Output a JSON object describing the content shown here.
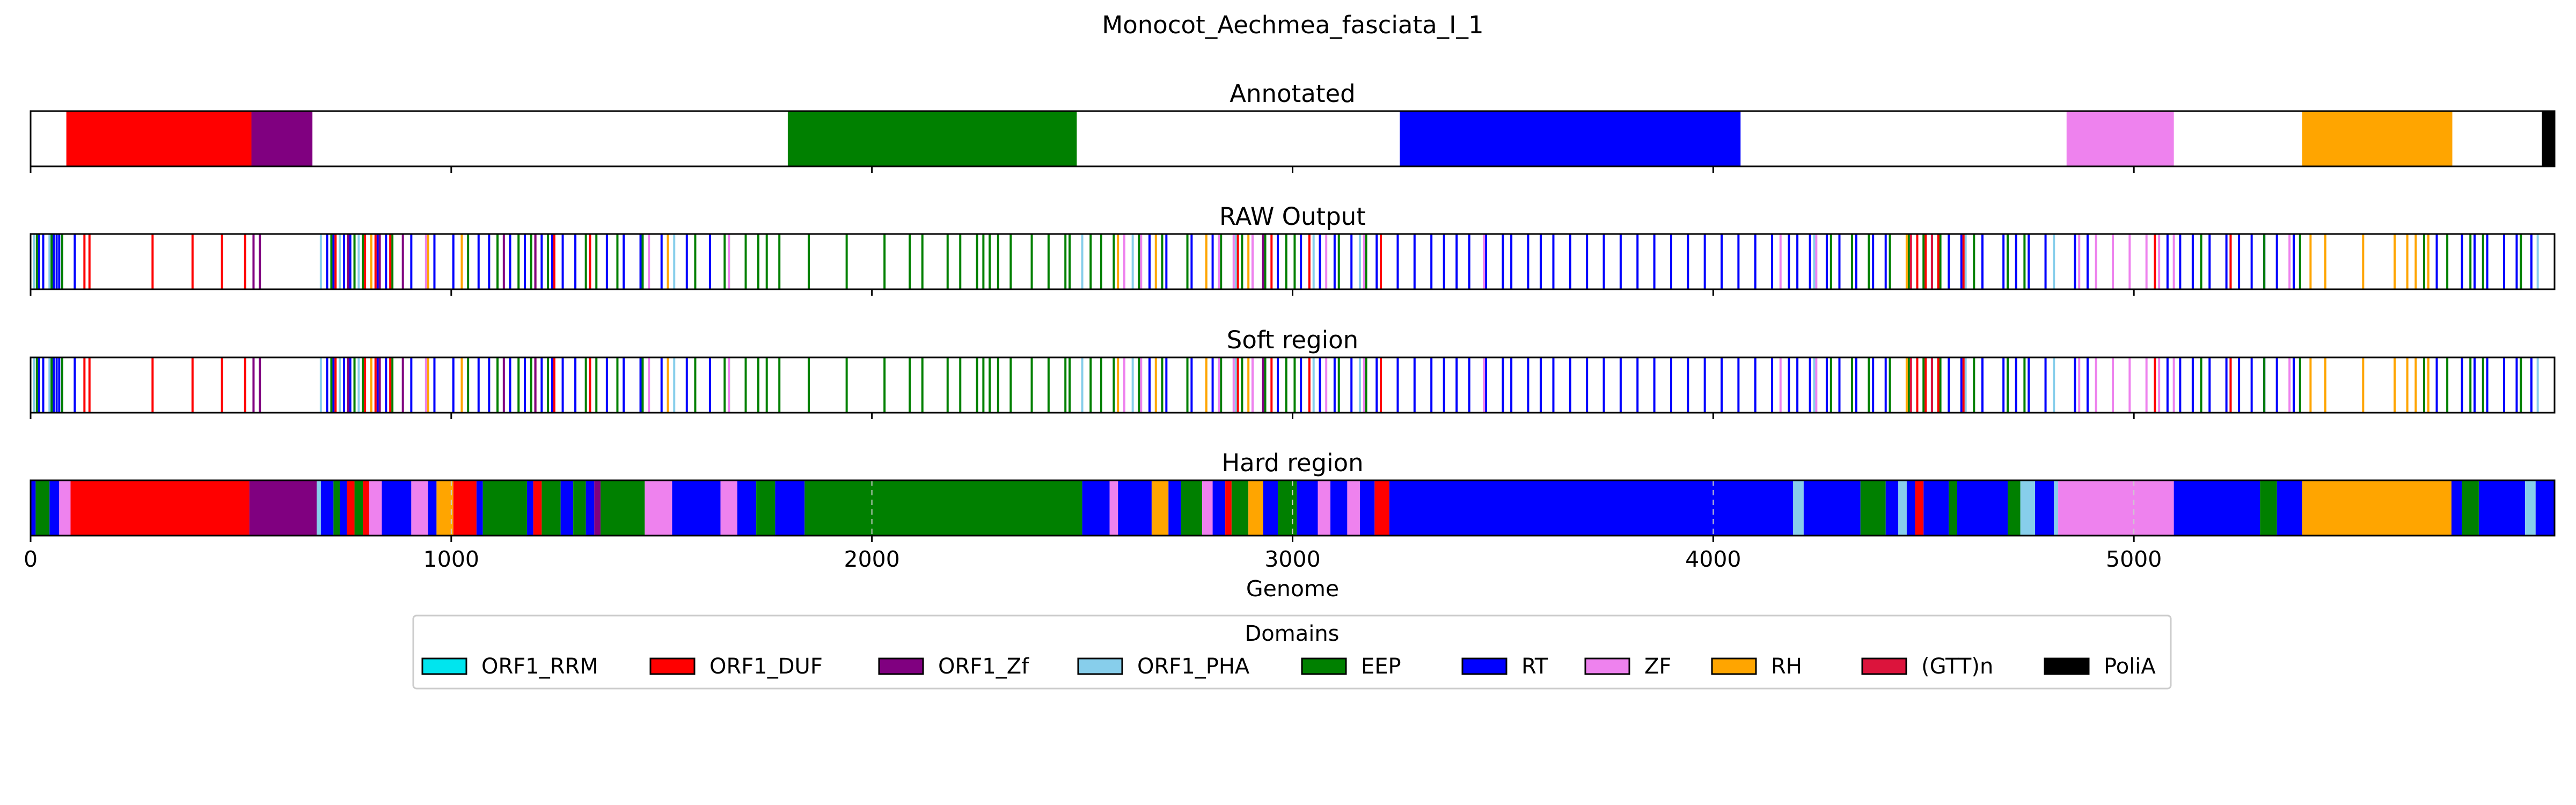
{
  "chart_data": {
    "type": "genome-track",
    "title": "Monocot_Aechmea_fasciata_I_1",
    "xlabel": "Genome",
    "xlim": [
      0,
      6000
    ],
    "xticks": [
      0,
      1000,
      2000,
      3000,
      4000,
      5000
    ],
    "tick_labels": [
      "0",
      "1000",
      "2000",
      "3000",
      "4000",
      "5000"
    ],
    "legend": {
      "title": "Domains",
      "placement": "bottom-center",
      "items": [
        {
          "label": "ORF1_RRM",
          "color": "#00e5ee"
        },
        {
          "label": "ORF1_DUF",
          "color": "#ff0000"
        },
        {
          "label": "ORF1_Zf",
          "color": "#800080"
        },
        {
          "label": "ORF1_PHA",
          "color": "#87ceeb"
        },
        {
          "label": "EEP",
          "color": "#008000"
        },
        {
          "label": "RT",
          "color": "#0000ff"
        },
        {
          "label": "ZF",
          "color": "#ee82ee"
        },
        {
          "label": "RH",
          "color": "#ffa500"
        },
        {
          "label": "(GTT)n",
          "color": "#dc143c"
        },
        {
          "label": "PoliA",
          "color": "#000000"
        }
      ]
    },
    "panels": [
      {
        "title": "Annotated",
        "kind": "blocks",
        "segments": [
          {
            "domain": "ORF1_DUF",
            "start": 85,
            "end": 525
          },
          {
            "domain": "ORF1_Zf",
            "start": 525,
            "end": 670
          },
          {
            "domain": "EEP",
            "start": 1800,
            "end": 2487
          },
          {
            "domain": "RT",
            "start": 3255,
            "end": 4065
          },
          {
            "domain": "ZF",
            "start": 4840,
            "end": 5095
          },
          {
            "domain": "RH",
            "start": 5400,
            "end": 5757
          },
          {
            "domain": "PoliA",
            "start": 5970,
            "end": 6000
          }
        ]
      },
      {
        "title": "RAW Output",
        "kind": "lines",
        "hits": [
          {
            "domain": "ORF1_PHA",
            "x": [
              8,
              45,
              690,
              735,
              780,
              1530,
              2500,
              2620,
              2865,
              3050,
              3160,
              4240,
              4600,
              4810,
              5960
            ]
          },
          {
            "domain": "RT",
            "x": [
              20,
              30,
              55,
              62,
              68,
              105,
              705,
              720,
              745,
              760,
              825,
              845,
              905,
              960,
              1005,
              1065,
              1090,
              1140,
              1175,
              1215,
              1240,
              1265,
              1295,
              1330,
              1370,
              1410,
              1450,
              1500,
              1560,
              1615,
              2660,
              2700,
              2760,
              2810,
              2905,
              2965,
              3020,
              3065,
              3100,
              3140,
              3200,
              3250,
              3290,
              3330,
              3360,
              3390,
              3420,
              3460,
              3500,
              3520,
              3560,
              3590,
              3620,
              3660,
              3700,
              3740,
              3780,
              3820,
              3860,
              3900,
              3940,
              3980,
              4020,
              4060,
              4100,
              4140,
              4180,
              4200,
              4230,
              4270,
              4300,
              4340,
              4380,
              4410,
              4520,
              4560,
              4590,
              4640,
              4690,
              4720,
              4750,
              4790,
              4860,
              4890,
              5080,
              5110,
              5140,
              5180,
              5220,
              5250,
              5280,
              5310,
              5340,
              5380,
              5720,
              5780,
              5810,
              5840,
              5880,
              5910,
              5945
            ]
          },
          {
            "domain": "EEP",
            "x": [
              15,
              50,
              75,
              715,
              770,
              790,
              860,
              1040,
              1110,
              1160,
              1190,
              1230,
              1320,
              1345,
              1395,
              1455,
              1580,
              1650,
              1660,
              1700,
              1730,
              1750,
              1780,
              1850,
              1940,
              2030,
              2090,
              2120,
              2180,
              2210,
              2250,
              2265,
              2280,
              2300,
              2330,
              2380,
              2420,
              2460,
              2470,
              2520,
              2545,
              2575,
              2635,
              2690,
              2750,
              2830,
              2880,
              2935,
              2985,
              3005,
              3110,
              3175,
              4280,
              4330,
              4370,
              4420,
              4465,
              4500,
              4540,
              4620,
              4700,
              4740,
              5160,
              5230,
              5310,
              5395,
              5690,
              5745,
              5800,
              5830,
              5920
            ]
          },
          {
            "domain": "ORF1_DUF",
            "x": [
              128,
              140,
              290,
              385,
              455,
              510,
              725,
              795,
              820,
              855,
              1200,
              1245,
              1330,
              2870,
              2950,
              3040,
              3210,
              4485,
              4505,
              4535,
              4595,
              5050,
              5230
            ]
          },
          {
            "domain": "ORF1_Zf",
            "x": [
              530,
              545,
              755,
              830,
              885,
              1125,
              1200,
              2930
            ]
          },
          {
            "domain": "ZF",
            "x": [
              940,
              1470,
              1660,
              2600,
              2640,
              2825,
              2860,
              2905,
              3080,
              3170,
              3455,
              4160,
              4245,
              4870,
              4910,
              4950,
              4990,
              5030,
              5060,
              5095,
              5370
            ]
          },
          {
            "domain": "RH",
            "x": [
              810,
              945,
              1025,
              1515,
              2585,
              2675,
              2795,
              2895,
              4460,
              5420,
              5455,
              5545,
              5620,
              5650,
              5670,
              5700
            ]
          },
          {
            "domain": "(GTT)n",
            "x": [
              4470,
              4520
            ]
          }
        ]
      },
      {
        "title": "Soft region",
        "kind": "lines",
        "same_as": "RAW Output"
      },
      {
        "title": "Hard region",
        "kind": "blocks",
        "segments": [
          {
            "domain": "RT",
            "start": 0,
            "end": 12
          },
          {
            "domain": "EEP",
            "start": 12,
            "end": 45
          },
          {
            "domain": "RT",
            "start": 45,
            "end": 68
          },
          {
            "domain": "ZF",
            "start": 68,
            "end": 95
          },
          {
            "domain": "ORF1_DUF",
            "start": 95,
            "end": 520
          },
          {
            "domain": "ORF1_Zf",
            "start": 520,
            "end": 680
          },
          {
            "domain": "ORF1_PHA",
            "start": 680,
            "end": 690
          },
          {
            "domain": "RT",
            "start": 690,
            "end": 720
          },
          {
            "domain": "EEP",
            "start": 720,
            "end": 735
          },
          {
            "domain": "RT",
            "start": 735,
            "end": 752
          },
          {
            "domain": "ORF1_DUF",
            "start": 752,
            "end": 770
          },
          {
            "domain": "EEP",
            "start": 770,
            "end": 790
          },
          {
            "domain": "ORF1_DUF",
            "start": 790,
            "end": 805
          },
          {
            "domain": "ZF",
            "start": 805,
            "end": 835
          },
          {
            "domain": "RT",
            "start": 835,
            "end": 905
          },
          {
            "domain": "ZF",
            "start": 905,
            "end": 945
          },
          {
            "domain": "RT",
            "start": 945,
            "end": 965
          },
          {
            "domain": "RH",
            "start": 965,
            "end": 1005
          },
          {
            "domain": "ORF1_DUF",
            "start": 1005,
            "end": 1060
          },
          {
            "domain": "RT",
            "start": 1060,
            "end": 1075
          },
          {
            "domain": "EEP",
            "start": 1075,
            "end": 1180
          },
          {
            "domain": "RT",
            "start": 1180,
            "end": 1195
          },
          {
            "domain": "ORF1_DUF",
            "start": 1195,
            "end": 1215
          },
          {
            "domain": "EEP",
            "start": 1215,
            "end": 1260
          },
          {
            "domain": "RT",
            "start": 1260,
            "end": 1290
          },
          {
            "domain": "EEP",
            "start": 1290,
            "end": 1320
          },
          {
            "domain": "RT",
            "start": 1320,
            "end": 1340
          },
          {
            "domain": "ORF1_Zf",
            "start": 1340,
            "end": 1355
          },
          {
            "domain": "EEP",
            "start": 1355,
            "end": 1460
          },
          {
            "domain": "ZF",
            "start": 1460,
            "end": 1525
          },
          {
            "domain": "RT",
            "start": 1525,
            "end": 1640
          },
          {
            "domain": "ZF",
            "start": 1640,
            "end": 1680
          },
          {
            "domain": "RT",
            "start": 1680,
            "end": 1725
          },
          {
            "domain": "EEP",
            "start": 1725,
            "end": 1770
          },
          {
            "domain": "RT",
            "start": 1770,
            "end": 1840
          },
          {
            "domain": "EEP",
            "start": 1840,
            "end": 2500
          },
          {
            "domain": "RT",
            "start": 2500,
            "end": 2565
          },
          {
            "domain": "ZF",
            "start": 2565,
            "end": 2585
          },
          {
            "domain": "RT",
            "start": 2585,
            "end": 2665
          },
          {
            "domain": "RH",
            "start": 2665,
            "end": 2705
          },
          {
            "domain": "RT",
            "start": 2705,
            "end": 2735
          },
          {
            "domain": "EEP",
            "start": 2735,
            "end": 2785
          },
          {
            "domain": "ZF",
            "start": 2785,
            "end": 2810
          },
          {
            "domain": "RT",
            "start": 2810,
            "end": 2840
          },
          {
            "domain": "ORF1_DUF",
            "start": 2840,
            "end": 2855
          },
          {
            "domain": "EEP",
            "start": 2855,
            "end": 2895
          },
          {
            "domain": "RH",
            "start": 2895,
            "end": 2930
          },
          {
            "domain": "RT",
            "start": 2930,
            "end": 2965
          },
          {
            "domain": "EEP",
            "start": 2965,
            "end": 3010
          },
          {
            "domain": "RT",
            "start": 3010,
            "end": 3060
          },
          {
            "domain": "ZF",
            "start": 3060,
            "end": 3090
          },
          {
            "domain": "RT",
            "start": 3090,
            "end": 3130
          },
          {
            "domain": "ZF",
            "start": 3130,
            "end": 3160
          },
          {
            "domain": "RT",
            "start": 3160,
            "end": 3195
          },
          {
            "domain": "ORF1_DUF",
            "start": 3195,
            "end": 3230
          },
          {
            "domain": "RT",
            "start": 3230,
            "end": 4190
          },
          {
            "domain": "ORF1_PHA",
            "start": 4190,
            "end": 4215
          },
          {
            "domain": "RT",
            "start": 4215,
            "end": 4350
          },
          {
            "domain": "EEP",
            "start": 4350,
            "end": 4410
          },
          {
            "domain": "RT",
            "start": 4410,
            "end": 4440
          },
          {
            "domain": "ORF1_PHA",
            "start": 4440,
            "end": 4460
          },
          {
            "domain": "RT",
            "start": 4460,
            "end": 4480
          },
          {
            "domain": "ORF1_DUF",
            "start": 4480,
            "end": 4500
          },
          {
            "domain": "RT",
            "start": 4500,
            "end": 4560
          },
          {
            "domain": "EEP",
            "start": 4560,
            "end": 4580
          },
          {
            "domain": "RT",
            "start": 4580,
            "end": 4700
          },
          {
            "domain": "EEP",
            "start": 4700,
            "end": 4730
          },
          {
            "domain": "ORF1_PHA",
            "start": 4730,
            "end": 4765
          },
          {
            "domain": "RT",
            "start": 4765,
            "end": 4810
          },
          {
            "domain": "ORF1_PHA",
            "start": 4810,
            "end": 4820
          },
          {
            "domain": "ZF",
            "start": 4820,
            "end": 5095
          },
          {
            "domain": "RT",
            "start": 5095,
            "end": 5300
          },
          {
            "domain": "EEP",
            "start": 5300,
            "end": 5340
          },
          {
            "domain": "RT",
            "start": 5340,
            "end": 5400
          },
          {
            "domain": "RH",
            "start": 5400,
            "end": 5755
          },
          {
            "domain": "RT",
            "start": 5755,
            "end": 5780
          },
          {
            "domain": "EEP",
            "start": 5780,
            "end": 5820
          },
          {
            "domain": "RT",
            "start": 5820,
            "end": 5930
          },
          {
            "domain": "ORF1_PHA",
            "start": 5930,
            "end": 5955
          },
          {
            "domain": "RT",
            "start": 5955,
            "end": 6000
          }
        ]
      }
    ]
  }
}
